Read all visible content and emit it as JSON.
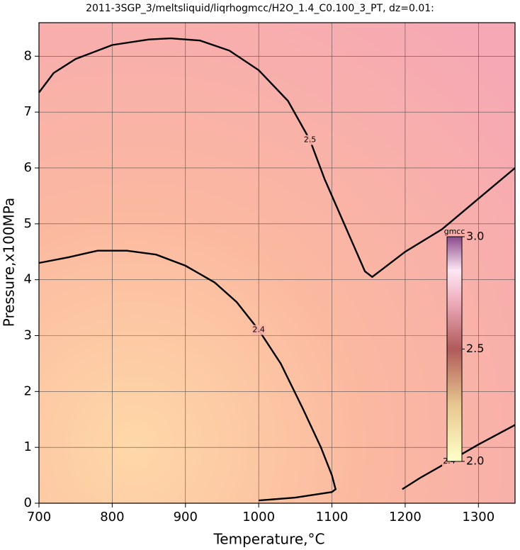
{
  "chart_data": {
    "type": "contour",
    "title": "2011-3SGP_3/meltsliquid/liqrhogmcc/H2O_1.4_C0.100_3_PT, dz=0.01:",
    "x_label": "Temperature,°C",
    "y_label": "Pressure,x100MPa",
    "xlim": [
      700,
      1350
    ],
    "xticks": [
      700,
      800,
      900,
      1000,
      1100,
      1200,
      1300
    ],
    "ylim": [
      0,
      8.6
    ],
    "yticks": [
      0,
      1,
      2,
      3,
      4,
      5,
      6,
      7,
      8
    ],
    "grid": true,
    "contours": [
      {
        "level": 2.5,
        "x": [
          700,
          720,
          750,
          790,
          800,
          850,
          880,
          920,
          960,
          1000,
          1040,
          1070,
          1090,
          1110,
          1130,
          1145,
          1155,
          1170,
          1200,
          1250,
          1300,
          1350
        ],
        "y": [
          7.35,
          7.7,
          7.95,
          8.15,
          8.2,
          8.3,
          8.32,
          8.28,
          8.1,
          7.75,
          7.2,
          6.5,
          5.8,
          5.2,
          4.6,
          4.15,
          4.05,
          4.2,
          4.5,
          4.9,
          5.45,
          6.0
        ]
      },
      {
        "level": 2.4,
        "x": [
          700,
          740,
          780,
          820,
          860,
          900,
          940,
          970,
          1000,
          1030,
          1060,
          1085,
          1100,
          1105,
          1100,
          1050,
          1000
        ],
        "y": [
          4.3,
          4.4,
          4.52,
          4.52,
          4.45,
          4.25,
          3.95,
          3.6,
          3.1,
          2.5,
          1.7,
          1.0,
          0.5,
          0.25,
          0.2,
          0.1,
          0.05
        ]
      },
      {
        "level": 2.4,
        "x": [
          1196,
          1220,
          1260,
          1300,
          1350
        ],
        "y": [
          0.25,
          0.45,
          0.75,
          1.05,
          1.4
        ]
      }
    ],
    "colorbar": {
      "title": "gmcc",
      "lim": [
        2,
        3
      ],
      "ticks": [
        {
          "value": 2,
          "label": "2.0"
        },
        2.5,
        {
          "value": 3,
          "label": "3.0"
        }
      ]
    }
  }
}
